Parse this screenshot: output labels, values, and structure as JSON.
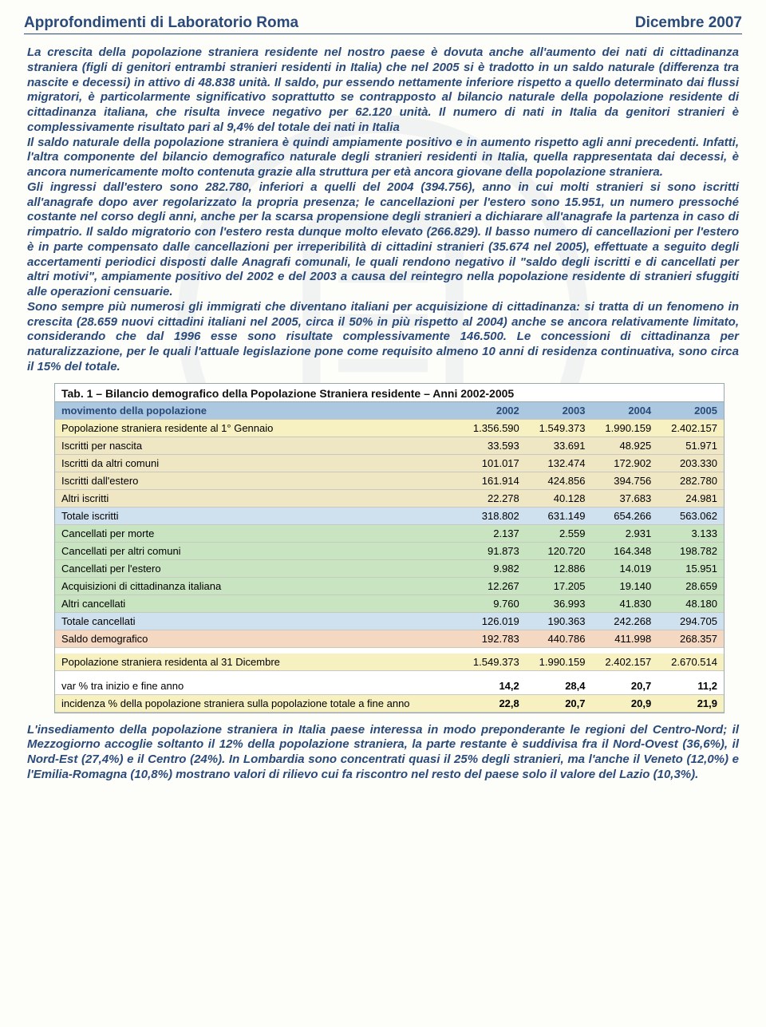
{
  "header": {
    "left": "Approfondimenti di Laboratorio Roma",
    "right": "Dicembre 2007"
  },
  "paragraph1": "La crescita della popolazione straniera residente nel nostro paese è dovuta anche all'aumento dei nati di cittadinanza straniera (figli di genitori entrambi stranieri residenti in Italia) che nel 2005 si è tradotto in un saldo naturale (differenza tra nascite e decessi) in attivo di 48.838 unità. Il saldo, pur essendo nettamente inferiore rispetto a quello determinato dai flussi migratori, è particolarmente significativo soprattutto se contrapposto al bilancio naturale della popolazione residente di cittadinanza italiana, che risulta invece negativo per 62.120 unità. Il numero di nati in Italia da genitori stranieri è complessivamente risultato pari al 9,4% del totale dei nati in Italia\nIl saldo naturale della popolazione straniera è quindi ampiamente positivo e in aumento rispetto agli anni precedenti. Infatti, l'altra componente del bilancio demografico naturale degli stranieri residenti in Italia, quella rappresentata dai decessi, è ancora numericamente molto contenuta grazie alla struttura per età ancora giovane della popolazione straniera.\nGli ingressi dall'estero sono 282.780, inferiori a quelli del 2004 (394.756), anno in cui molti stranieri si sono iscritti all'anagrafe dopo aver regolarizzato la propria presenza; le cancellazioni per l'estero sono 15.951, un numero pressoché costante nel corso degli anni, anche per la scarsa propensione degli stranieri a dichiarare all'anagrafe la partenza in caso di rimpatrio. Il saldo migratorio con l'estero resta dunque molto elevato (266.829). Il basso numero di cancellazioni per l'estero è in parte compensato dalle cancellazioni per irreperibilità di cittadini stranieri (35.674 nel 2005), effettuate a seguito degli accertamenti periodici disposti dalle Anagrafi comunali, le quali rendono negativo il \"saldo degli iscritti e di cancellati per altri motivi\", ampiamente positivo del 2002 e del 2003 a causa del reintegro nella popolazione residente di stranieri sfuggiti alle operazioni censuarie.\nSono sempre più numerosi gli immigrati che diventano italiani per acquisizione di cittadinanza: si tratta di un fenomeno in crescita (28.659 nuovi cittadini italiani nel 2005, circa il 50% in più rispetto al 2004) anche se ancora relativamente limitato, considerando che dal 1996 esse sono risultate complessivamente 146.500. Le concessioni di cittadinanza per naturalizzazione, per le quali l'attuale legislazione pone come requisito almeno 10 anni di residenza continuativa, sono circa il 15% del totale.",
  "table": {
    "title": "Tab. 1 – Bilancio demografico della Popolazione Straniera residente – Anni 2002-2005",
    "header": [
      "movimento della popolazione",
      "2002",
      "2003",
      "2004",
      "2005"
    ],
    "rows": [
      {
        "cls": "r-yellow",
        "cells": [
          "Popolazione straniera residente al 1° Gennaio",
          "1.356.590",
          "1.549.373",
          "1.990.159",
          "2.402.157"
        ]
      },
      {
        "cls": "r-beige",
        "cells": [
          "Iscritti per nascita",
          "33.593",
          "33.691",
          "48.925",
          "51.971"
        ]
      },
      {
        "cls": "r-beige",
        "cells": [
          "Iscritti da altri comuni",
          "101.017",
          "132.474",
          "172.902",
          "203.330"
        ]
      },
      {
        "cls": "r-beige",
        "cells": [
          "Iscritti dall'estero",
          "161.914",
          "424.856",
          "394.756",
          "282.780"
        ]
      },
      {
        "cls": "r-beige",
        "cells": [
          "Altri iscritti",
          "22.278",
          "40.128",
          "37.683",
          "24.981"
        ]
      },
      {
        "cls": "r-blue",
        "cells": [
          "Totale iscritti",
          "318.802",
          "631.149",
          "654.266",
          "563.062"
        ]
      },
      {
        "cls": "r-green",
        "cells": [
          "Cancellati per morte",
          "2.137",
          "2.559",
          "2.931",
          "3.133"
        ]
      },
      {
        "cls": "r-green",
        "cells": [
          "Cancellati per altri comuni",
          "91.873",
          "120.720",
          "164.348",
          "198.782"
        ]
      },
      {
        "cls": "r-green",
        "cells": [
          "Cancellati per l'estero",
          "9.982",
          "12.886",
          "14.019",
          "15.951"
        ]
      },
      {
        "cls": "r-green",
        "cells": [
          "Acquisizioni di cittadinanza italiana",
          "12.267",
          "17.205",
          "19.140",
          "28.659"
        ]
      },
      {
        "cls": "r-green",
        "cells": [
          "Altri cancellati",
          "9.760",
          "36.993",
          "41.830",
          "48.180"
        ]
      },
      {
        "cls": "r-blue",
        "cells": [
          "Totale cancellati",
          "126.019",
          "190.363",
          "242.268",
          "294.705"
        ]
      },
      {
        "cls": "r-peach",
        "cells": [
          "Saldo demografico",
          "192.783",
          "440.786",
          "411.998",
          "268.357"
        ]
      }
    ],
    "row_pop_dec": {
      "cls": "r-yellow",
      "cells": [
        "Popolazione straniera residenta al 31 Dicembre",
        "1.549.373",
        "1.990.159",
        "2.402.157",
        "2.670.514"
      ]
    },
    "row_var": {
      "cls": "r-white",
      "cells": [
        "var % tra inizio e fine anno",
        "14,2",
        "28,4",
        "20,7",
        "11,2"
      ]
    },
    "row_inc": {
      "cls": "r-yellow",
      "cells": [
        "incidenza % della popolazione straniera sulla popolazione totale a fine anno",
        "22,8",
        "20,7",
        "20,9",
        "21,9"
      ]
    }
  },
  "paragraph2": "L'insediamento della popolazione straniera in Italia paese interessa in modo preponderante le regioni del Centro-Nord; il Mezzogiorno accoglie soltanto il 12% della popolazione straniera, la parte restante è suddivisa fra il Nord-Ovest (36,6%), il Nord-Est (27,4%) e il Centro (24%). In Lombardia sono concentrati quasi il 25% degli stranieri, ma l'anche il Veneto (12,0%) e l'Emilia-Romagna (10,8%) mostrano valori di rilievo cui fa riscontro nel resto del paese solo il valore del Lazio (10,3%)."
}
